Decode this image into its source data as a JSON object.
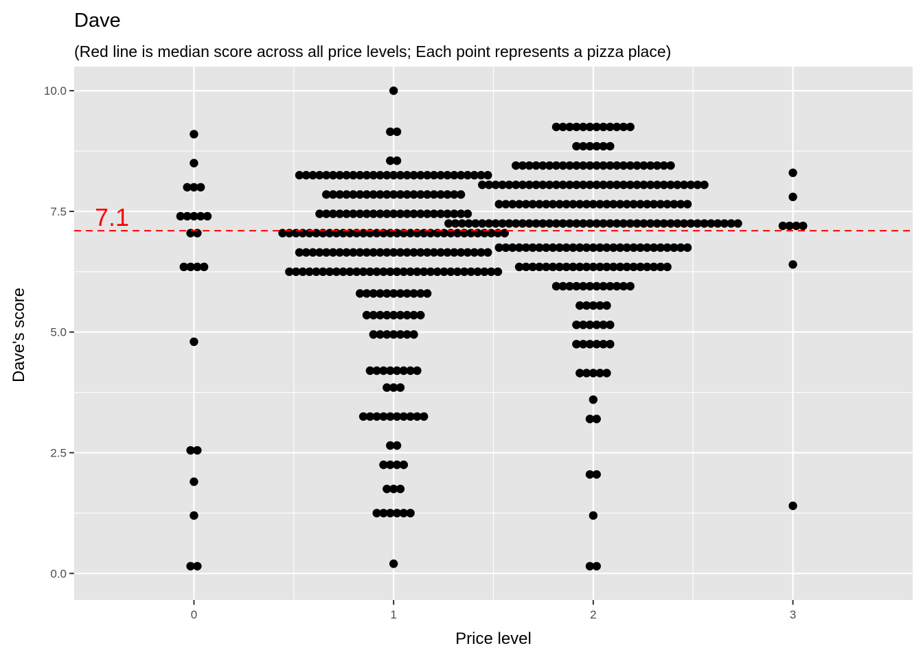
{
  "chart_data": {
    "type": "scatter",
    "title": "Dave",
    "subtitle": "(Red line is median score across all price levels; Each point represents a pizza place)",
    "xlabel": "Price level",
    "ylabel": "Dave's score",
    "xlim": [
      -0.6,
      3.6
    ],
    "ylim": [
      -0.55,
      10.5
    ],
    "x_ticks": [
      0,
      1,
      2,
      3
    ],
    "x_tick_labels": [
      "0",
      "1",
      "2",
      "3"
    ],
    "y_ticks": [
      0,
      2.5,
      5,
      7.5,
      10
    ],
    "y_tick_labels": [
      "0.0",
      "2.5",
      "5.0",
      "7.5",
      "10.0"
    ],
    "grid": true,
    "point_color": "#000000",
    "background": "#e5e5e5",
    "grid_color": "#ffffff",
    "median": {
      "value": 7.1,
      "label": "7.1",
      "color": "#ff0000",
      "style": "dashed"
    },
    "price_groups": [
      {
        "price_level": 0,
        "rows": [
          {
            "score": 9.1,
            "count": 1
          },
          {
            "score": 8.5,
            "count": 1
          },
          {
            "score": 8.0,
            "count": 3
          },
          {
            "score": 7.4,
            "count": 5
          },
          {
            "score": 7.05,
            "count": 2
          },
          {
            "score": 6.35,
            "count": 4
          },
          {
            "score": 4.8,
            "count": 1
          },
          {
            "score": 2.55,
            "count": 2
          },
          {
            "score": 1.9,
            "count": 1
          },
          {
            "score": 1.2,
            "count": 1
          },
          {
            "score": 0.15,
            "count": 2
          }
        ]
      },
      {
        "price_level": 1,
        "rows": [
          {
            "score": 10.0,
            "count": 1
          },
          {
            "score": 9.15,
            "count": 2
          },
          {
            "score": 8.55,
            "count": 2
          },
          {
            "score": 8.25,
            "count": 29
          },
          {
            "score": 7.85,
            "count": 21
          },
          {
            "score": 7.45,
            "count": 23
          },
          {
            "score": 7.05,
            "count": 34
          },
          {
            "score": 6.65,
            "count": 29
          },
          {
            "score": 6.25,
            "count": 32
          },
          {
            "score": 5.8,
            "count": 11
          },
          {
            "score": 5.35,
            "count": 9
          },
          {
            "score": 4.95,
            "count": 7
          },
          {
            "score": 4.2,
            "count": 8
          },
          {
            "score": 3.85,
            "count": 3
          },
          {
            "score": 3.25,
            "count": 10
          },
          {
            "score": 2.65,
            "count": 2
          },
          {
            "score": 2.25,
            "count": 4
          },
          {
            "score": 1.75,
            "count": 3
          },
          {
            "score": 1.25,
            "count": 6
          },
          {
            "score": 0.2,
            "count": 1
          }
        ]
      },
      {
        "price_level": 2,
        "rows": [
          {
            "score": 9.25,
            "count": 12
          },
          {
            "score": 8.85,
            "count": 6
          },
          {
            "score": 8.45,
            "count": 24
          },
          {
            "score": 8.05,
            "count": 34
          },
          {
            "score": 7.65,
            "count": 29
          },
          {
            "score": 7.25,
            "count": 44
          },
          {
            "score": 6.75,
            "count": 29
          },
          {
            "score": 6.35,
            "count": 23
          },
          {
            "score": 5.95,
            "count": 12
          },
          {
            "score": 5.55,
            "count": 5
          },
          {
            "score": 5.15,
            "count": 6
          },
          {
            "score": 4.75,
            "count": 6
          },
          {
            "score": 4.15,
            "count": 5
          },
          {
            "score": 3.6,
            "count": 1
          },
          {
            "score": 3.2,
            "count": 2
          },
          {
            "score": 2.05,
            "count": 2
          },
          {
            "score": 1.2,
            "count": 1
          },
          {
            "score": 0.15,
            "count": 2
          }
        ]
      },
      {
        "price_level": 3,
        "rows": [
          {
            "score": 8.3,
            "count": 1
          },
          {
            "score": 7.8,
            "count": 1
          },
          {
            "score": 7.2,
            "count": 4
          },
          {
            "score": 6.4,
            "count": 1
          },
          {
            "score": 1.4,
            "count": 1
          }
        ]
      }
    ]
  }
}
